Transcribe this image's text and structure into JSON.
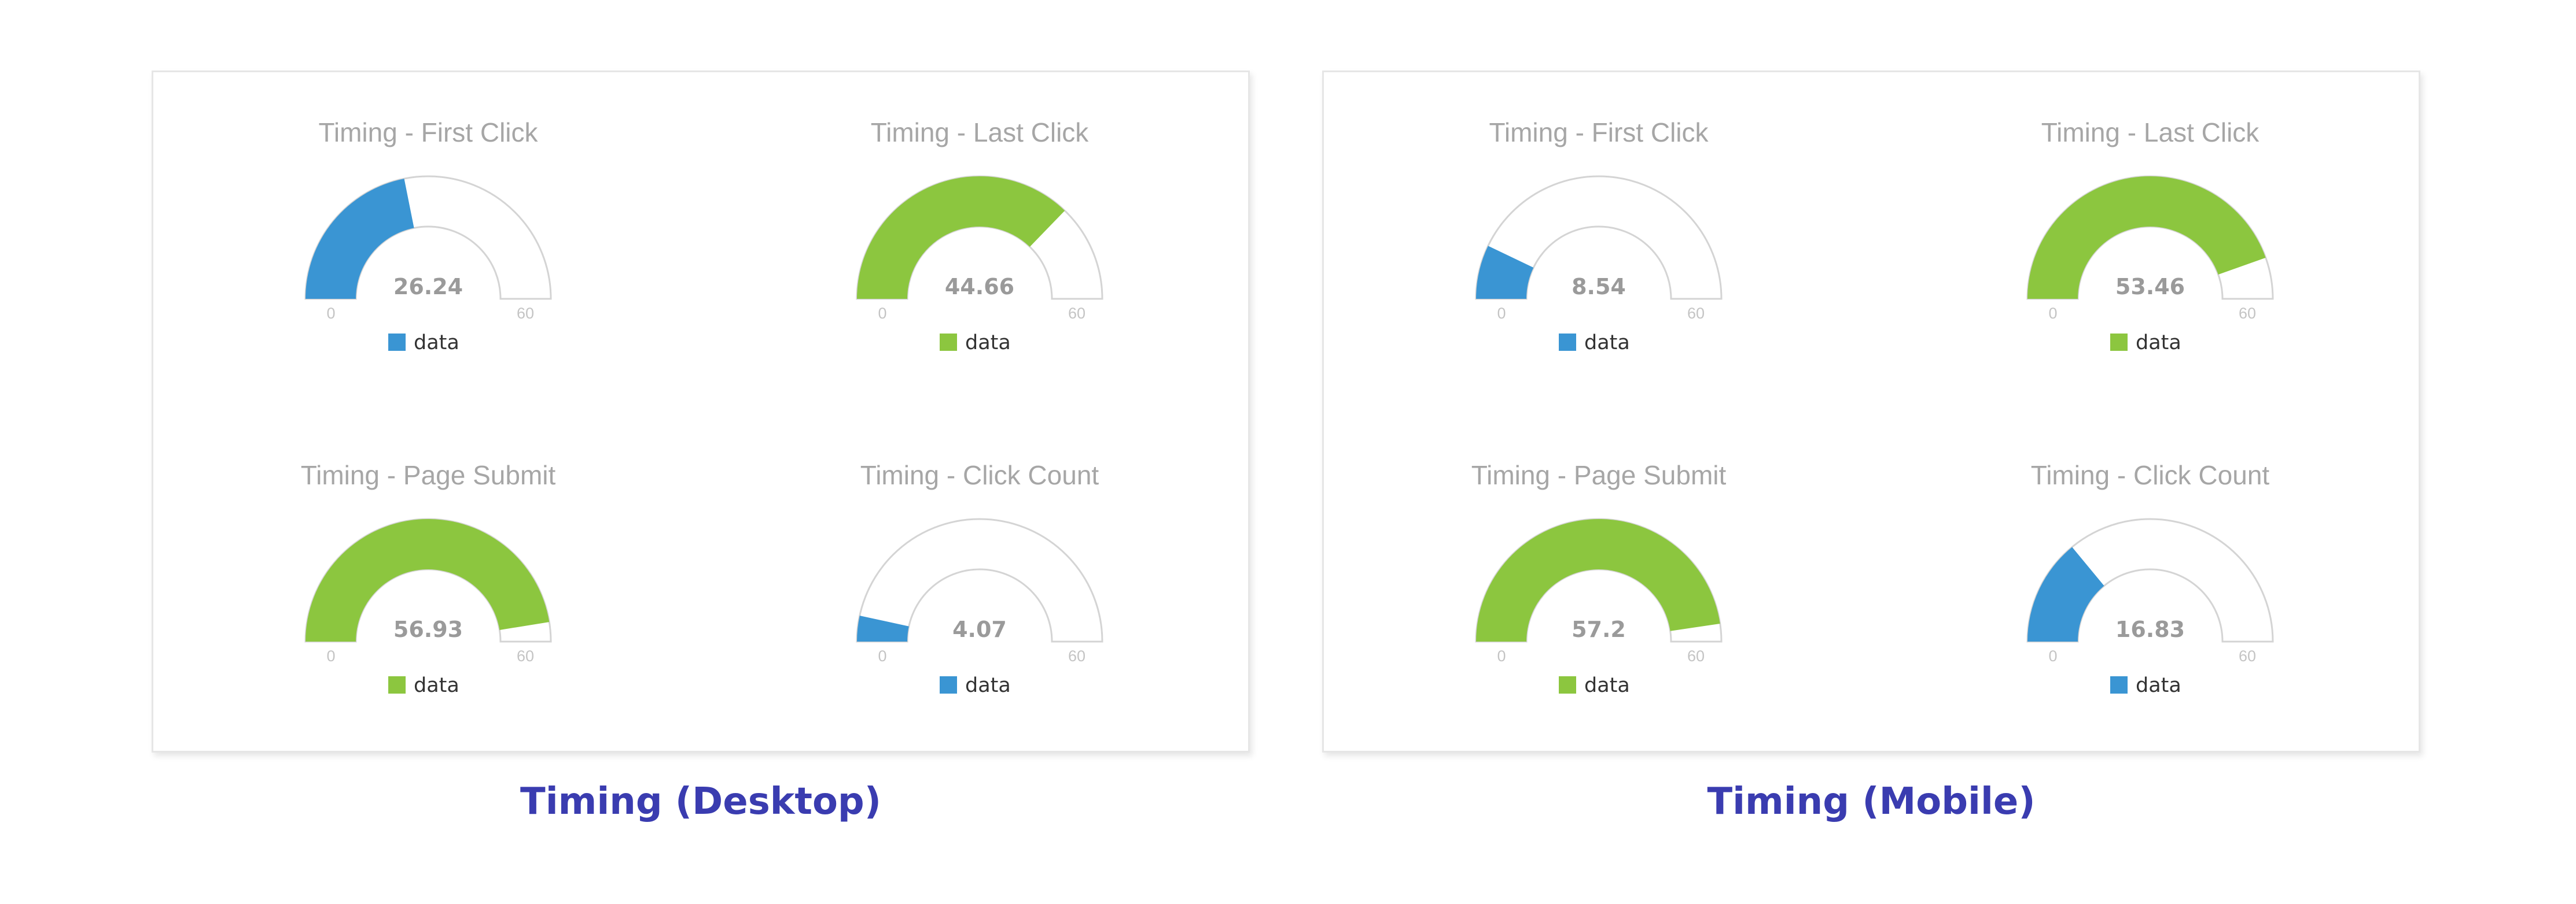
{
  "colors": {
    "blue": "#3a95d3",
    "green": "#8cc63f",
    "track_fill": "#ffffff",
    "track_stroke": "#d4d4d4",
    "caption": "#3a3cb0"
  },
  "panels": [
    {
      "caption": "Timing (Desktop)",
      "gauges": [
        {
          "title": "Timing - First Click",
          "value_label": "26.24",
          "min_label": "0",
          "max_label": "60",
          "legend": "data",
          "color": "blue"
        },
        {
          "title": "Timing - Last Click",
          "value_label": "44.66",
          "min_label": "0",
          "max_label": "60",
          "legend": "data",
          "color": "green"
        },
        {
          "title": "Timing - Page Submit",
          "value_label": "56.93",
          "min_label": "0",
          "max_label": "60",
          "legend": "data",
          "color": "green"
        },
        {
          "title": "Timing - Click Count",
          "value_label": "4.07",
          "min_label": "0",
          "max_label": "60",
          "legend": "data",
          "color": "blue"
        }
      ]
    },
    {
      "caption": "Timing (Mobile)",
      "gauges": [
        {
          "title": "Timing - First Click",
          "value_label": "8.54",
          "min_label": "0",
          "max_label": "60",
          "legend": "data",
          "color": "blue"
        },
        {
          "title": "Timing - Last Click",
          "value_label": "53.46",
          "min_label": "0",
          "max_label": "60",
          "legend": "data",
          "color": "green"
        },
        {
          "title": "Timing - Page Submit",
          "value_label": "57.2",
          "min_label": "0",
          "max_label": "60",
          "legend": "data",
          "color": "green"
        },
        {
          "title": "Timing - Click Count",
          "value_label": "16.83",
          "min_label": "0",
          "max_label": "60",
          "legend": "data",
          "color": "blue"
        }
      ]
    }
  ],
  "chart_data": [
    {
      "type": "gauge",
      "group": "Timing (Desktop)",
      "title": "Timing - First Click",
      "value": 26.24,
      "range": [
        0,
        60
      ],
      "series": "data"
    },
    {
      "type": "gauge",
      "group": "Timing (Desktop)",
      "title": "Timing - Last Click",
      "value": 44.66,
      "range": [
        0,
        60
      ],
      "series": "data"
    },
    {
      "type": "gauge",
      "group": "Timing (Desktop)",
      "title": "Timing - Page Submit",
      "value": 56.93,
      "range": [
        0,
        60
      ],
      "series": "data"
    },
    {
      "type": "gauge",
      "group": "Timing (Desktop)",
      "title": "Timing - Click Count",
      "value": 4.07,
      "range": [
        0,
        60
      ],
      "series": "data"
    },
    {
      "type": "gauge",
      "group": "Timing (Mobile)",
      "title": "Timing - First Click",
      "value": 8.54,
      "range": [
        0,
        60
      ],
      "series": "data"
    },
    {
      "type": "gauge",
      "group": "Timing (Mobile)",
      "title": "Timing - Last Click",
      "value": 53.46,
      "range": [
        0,
        60
      ],
      "series": "data"
    },
    {
      "type": "gauge",
      "group": "Timing (Mobile)",
      "title": "Timing - Page Submit",
      "value": 57.2,
      "range": [
        0,
        60
      ],
      "series": "data"
    },
    {
      "type": "gauge",
      "group": "Timing (Mobile)",
      "title": "Timing - Click Count",
      "value": 16.83,
      "range": [
        0,
        60
      ],
      "series": "data"
    }
  ]
}
